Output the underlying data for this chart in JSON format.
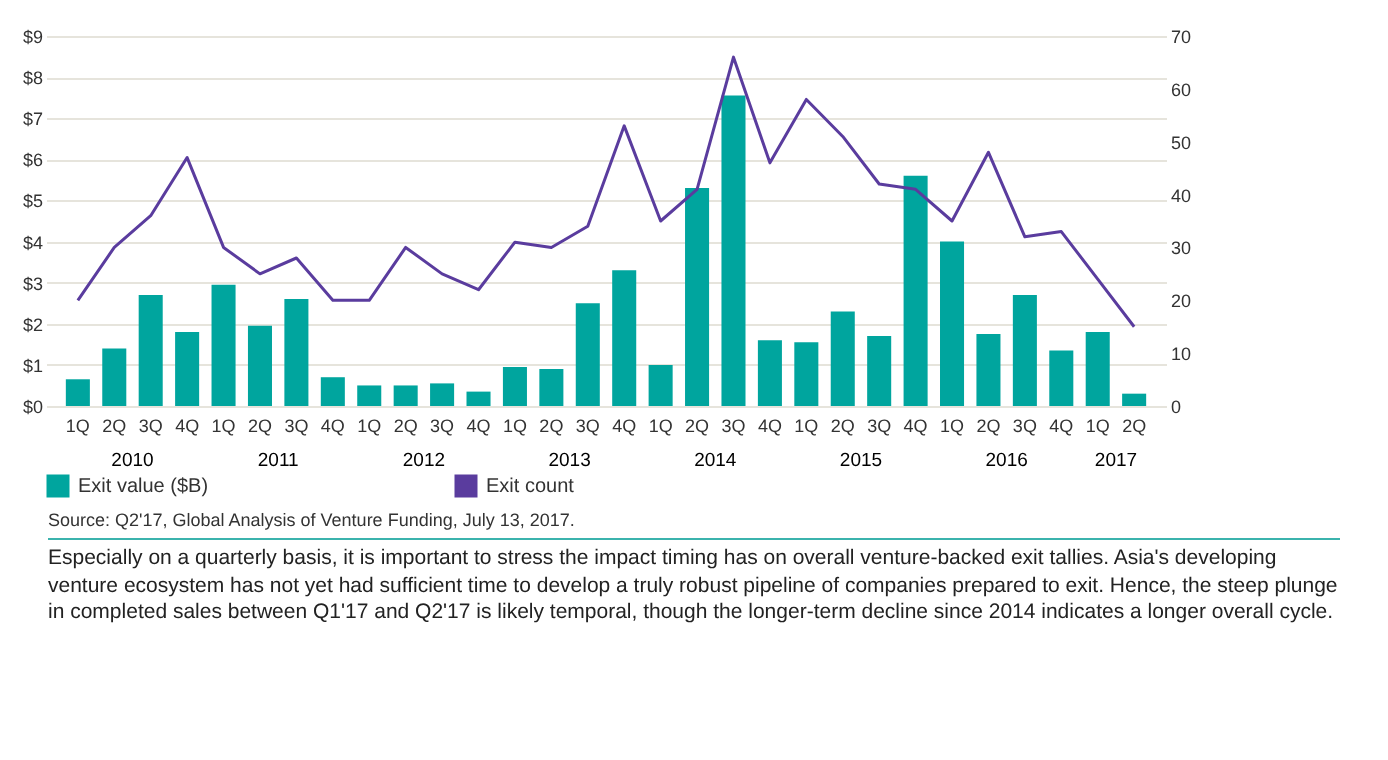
{
  "chart_data": {
    "type": "bar",
    "categories": [
      "1Q",
      "2Q",
      "3Q",
      "4Q",
      "1Q",
      "2Q",
      "3Q",
      "4Q",
      "1Q",
      "2Q",
      "3Q",
      "4Q",
      "1Q",
      "2Q",
      "3Q",
      "4Q",
      "1Q",
      "2Q",
      "3Q",
      "4Q",
      "1Q",
      "2Q",
      "3Q",
      "4Q",
      "1Q",
      "2Q",
      "3Q",
      "4Q",
      "1Q",
      "2Q"
    ],
    "series": [
      {
        "name": "Exit value ($B)",
        "color": "#00a59e",
        "values": [
          0.65,
          1.4,
          2.7,
          1.8,
          2.95,
          1.95,
          2.6,
          0.7,
          0.5,
          0.5,
          0.55,
          0.35,
          0.95,
          0.9,
          2.5,
          3.3,
          1.0,
          5.3,
          7.55,
          1.6,
          1.55,
          2.3,
          1.7,
          5.6,
          4.0,
          1.75,
          2.7,
          1.35,
          1.8,
          0.3
        ]
      },
      {
        "name": "Exit count",
        "type": "line",
        "axis": "y2",
        "color": "#5a3c9e",
        "values": [
          20,
          30,
          36,
          47,
          30,
          25,
          28,
          20,
          20,
          30,
          25,
          22,
          31,
          30,
          34,
          53,
          35,
          41,
          66,
          46,
          58,
          51,
          42,
          41,
          35,
          48,
          32,
          33,
          24,
          15
        ]
      }
    ],
    "ylim": [
      0,
      9
    ],
    "yticks": [
      {
        "value": 0,
        "label": "$0"
      },
      {
        "value": 1,
        "label": "$1"
      },
      {
        "value": 2,
        "label": "$2"
      },
      {
        "value": 3,
        "label": "$3"
      },
      {
        "value": 4,
        "label": "$4"
      },
      {
        "value": 5,
        "label": "$5"
      },
      {
        "value": 6,
        "label": "$6"
      },
      {
        "value": 7,
        "label": "$7"
      },
      {
        "value": 8,
        "label": "$8"
      },
      {
        "value": 9,
        "label": "$9"
      }
    ],
    "y2lim": [
      0,
      70
    ],
    "y2ticks": [
      0,
      10,
      20,
      30,
      40,
      50,
      60,
      70
    ],
    "grid": "y",
    "legend": "bottom",
    "annotations": [
      "2010",
      "2011",
      "2012",
      "2013",
      "2014",
      "2015",
      "2016",
      "2017",
      "Source: Q2'17, Global Analysis of Venture Funding, July 13, 2017.",
      "Especially on a quarterly basis, it is important to stress the impact timing has on overall venture-backed exit tallies. Asia's developing venture ecosystem has not yet had sufficient time to develop a truly robust pipeline of companies prepared to exit. Hence, the steep plunge in completed sales between Q1'17 and Q2'17 is likely temporal, though the longer-term decline since 2014 indicates a longer overall cycle."
    ]
  }
}
